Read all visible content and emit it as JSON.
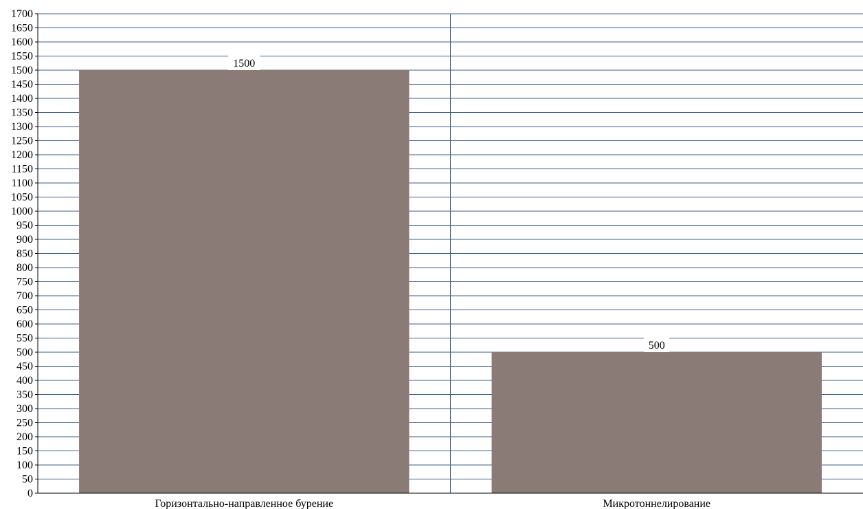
{
  "chart_data": {
    "type": "bar",
    "title": "",
    "xlabel": "",
    "ylabel": "",
    "categories": [
      "Горизонтально-направленное бурение",
      "Микротоннелирование"
    ],
    "series": [
      {
        "values": [
          1500,
          500
        ]
      }
    ],
    "data_labels": [
      "1500",
      "500"
    ],
    "ylim": [
      0,
      1700
    ],
    "y_tick_step": 50,
    "grid": true,
    "legend": "none",
    "colors": {
      "bar": "#8a7b76",
      "grid": "#3a5f8a",
      "axis": "#000000",
      "label_background": "#ffffff"
    }
  }
}
